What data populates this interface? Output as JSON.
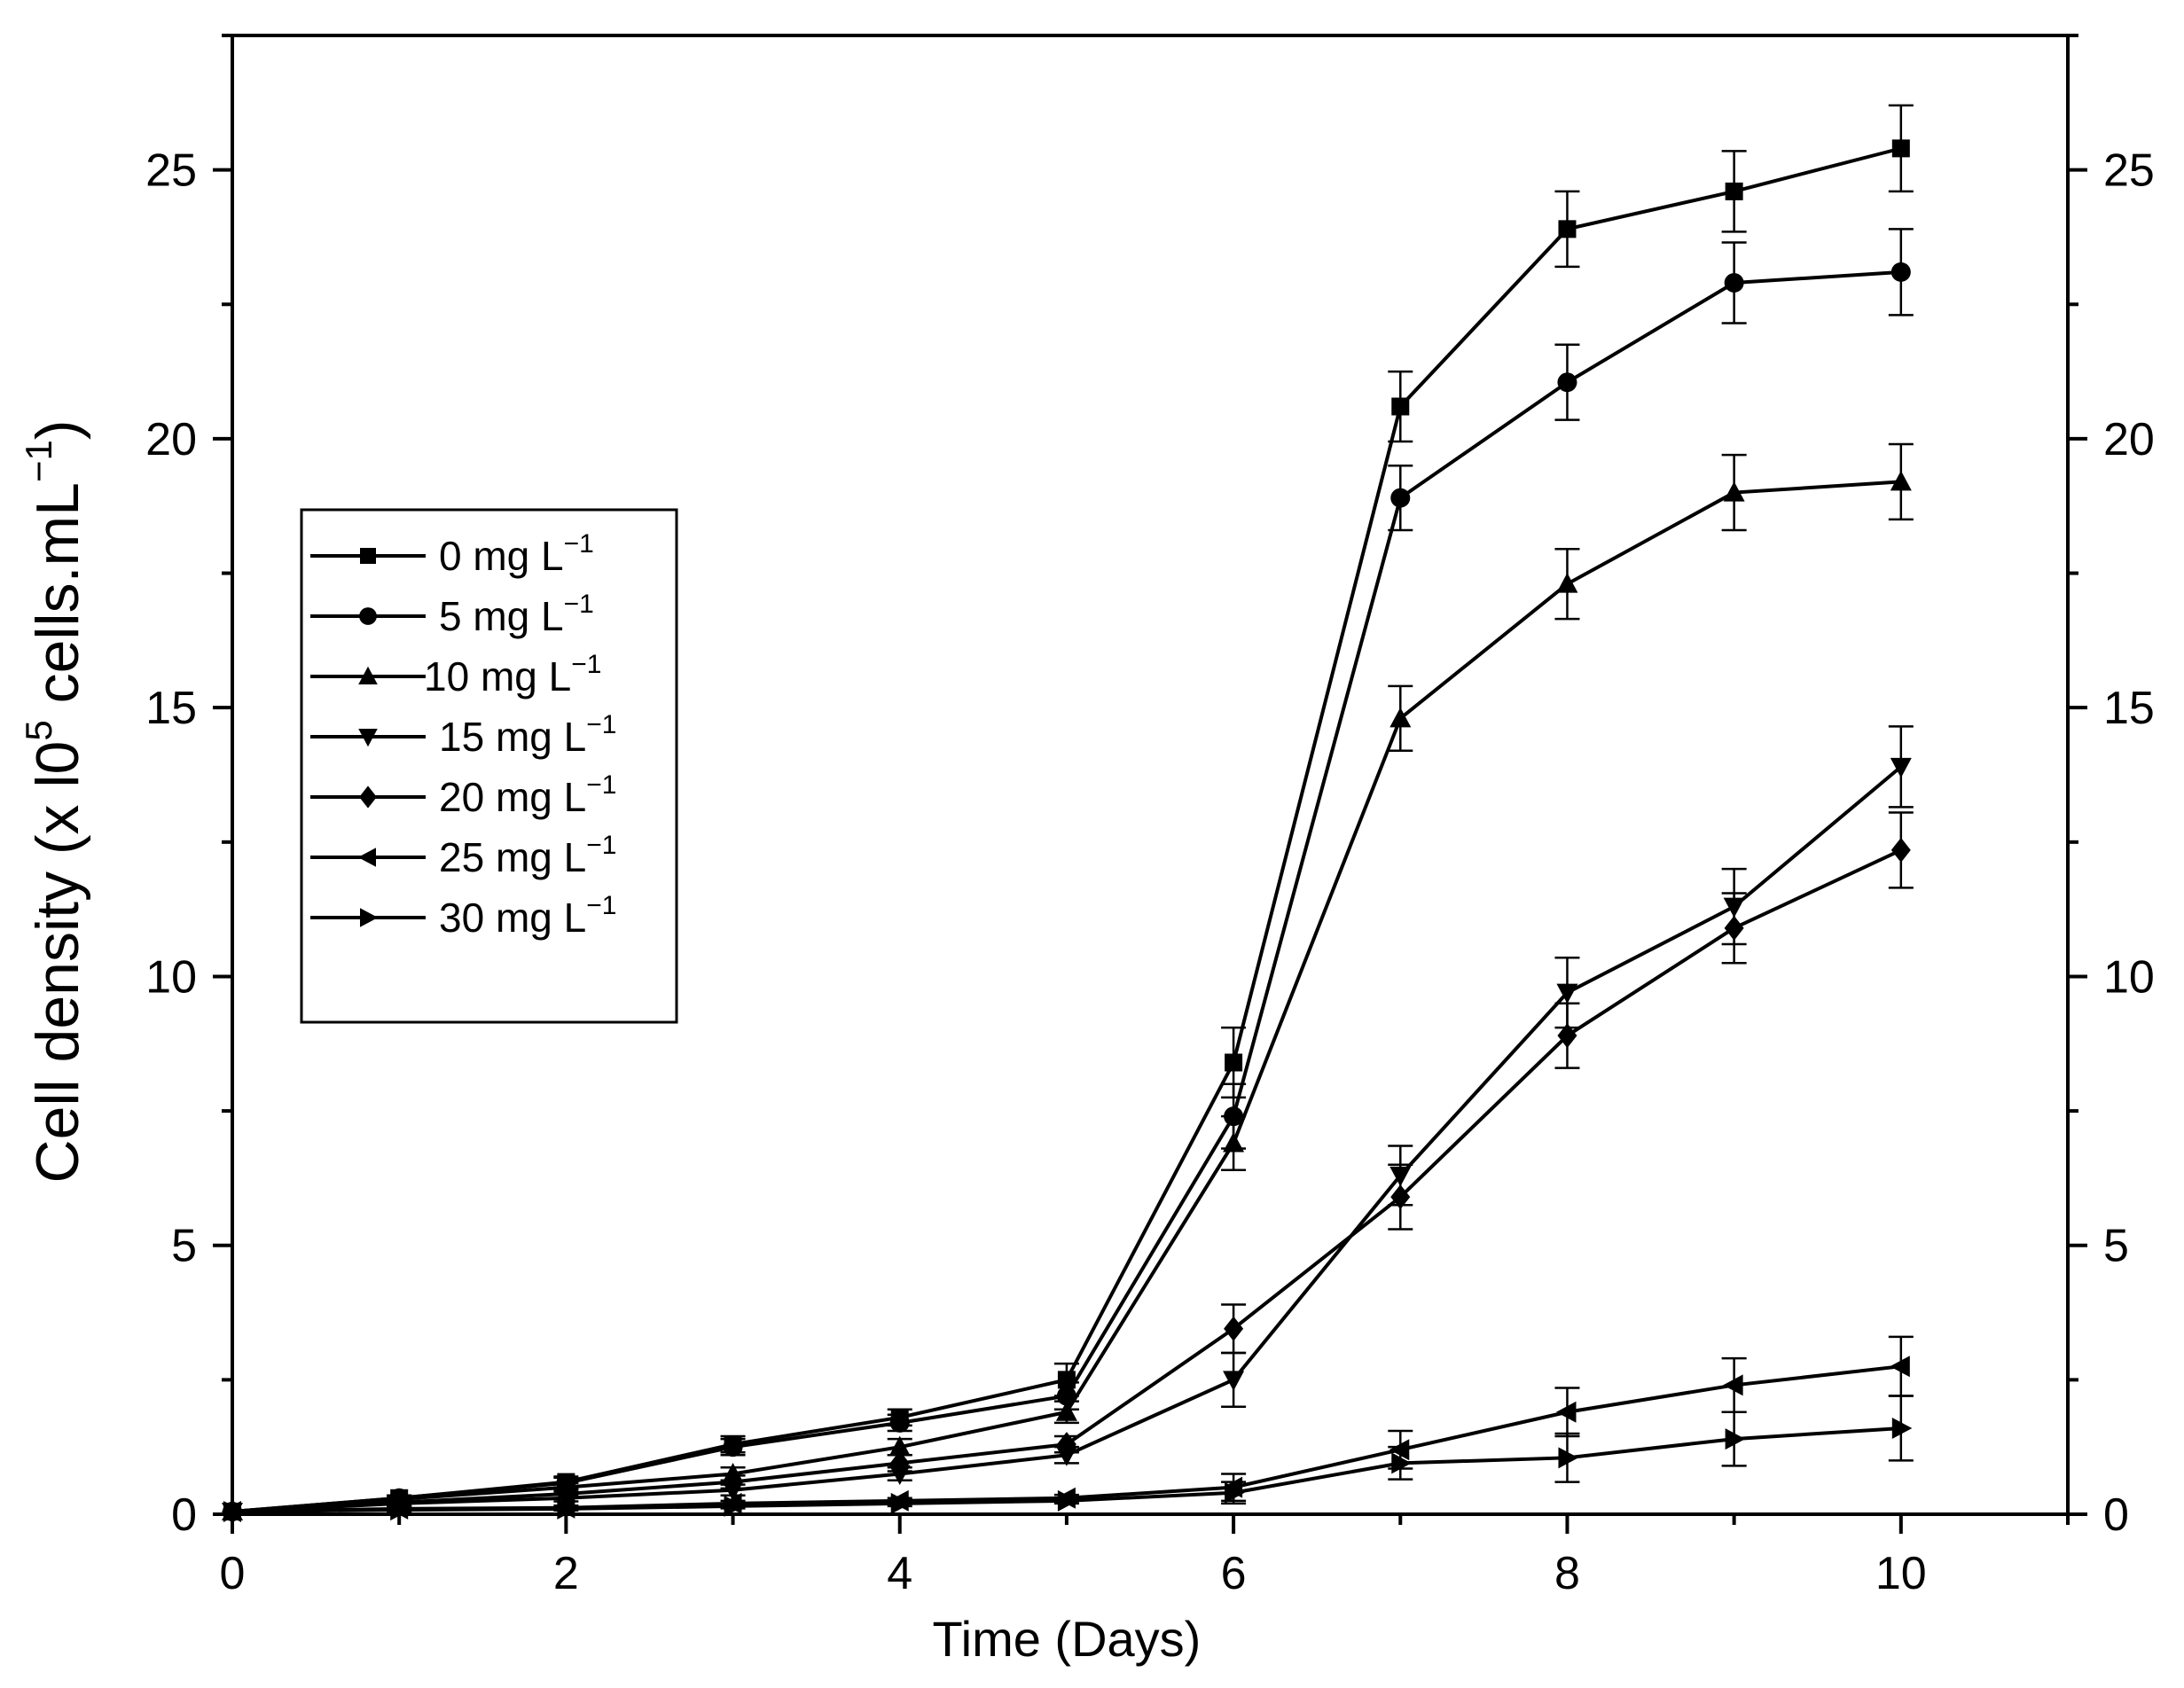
{
  "chart_data": {
    "type": "line",
    "title": "",
    "xlabel": "Time (Days)",
    "ylabel": {
      "main": "Cell density (x l0",
      "exp": "5",
      "unit": " cells.mL",
      "unit_exp": "−1",
      "close": ")"
    },
    "xlim": [
      0,
      11
    ],
    "ylim": [
      0,
      27.5
    ],
    "xticks": [
      0,
      2,
      4,
      6,
      8,
      10
    ],
    "xtick_labels": [
      "0",
      "2",
      "4",
      "6",
      "8",
      "10"
    ],
    "yticks": [
      0,
      5,
      10,
      15,
      20,
      25
    ],
    "ytick_labels": [
      "0",
      "5",
      "10",
      "15",
      "20",
      "25"
    ],
    "right_axis": true,
    "grid": false,
    "legend_position": "left-middle",
    "x": [
      0,
      1,
      2,
      3,
      4,
      5,
      6,
      7,
      8,
      9,
      10
    ],
    "series": [
      {
        "name": "0 mg L",
        "exp": "−1",
        "marker": "square",
        "values": [
          0.05,
          0.3,
          0.6,
          1.3,
          1.8,
          2.5,
          8.4,
          20.6,
          23.9,
          24.6,
          25.4
        ],
        "errors": [
          0,
          0.05,
          0.1,
          0.15,
          0.15,
          0.3,
          0.65,
          0.65,
          0.7,
          0.75,
          0.8
        ]
      },
      {
        "name": "5 mg L",
        "exp": "−1",
        "marker": "circle",
        "values": [
          0.05,
          0.3,
          0.58,
          1.25,
          1.7,
          2.2,
          7.4,
          18.9,
          21.05,
          22.9,
          23.1
        ],
        "errors": [
          0,
          0.05,
          0.1,
          0.15,
          0.15,
          0.25,
          0.6,
          0.6,
          0.7,
          0.75,
          0.8
        ]
      },
      {
        "name": "10 mg L",
        "exp": "−1",
        "marker": "triangle-up",
        "values": [
          0.05,
          0.28,
          0.5,
          0.75,
          1.25,
          1.9,
          6.9,
          14.8,
          17.3,
          19.0,
          19.2
        ],
        "errors": [
          0,
          0.05,
          0.08,
          0.12,
          0.15,
          0.2,
          0.5,
          0.6,
          0.65,
          0.7,
          0.7
        ]
      },
      {
        "name": "15 mg L",
        "exp": "−1",
        "marker": "triangle-down",
        "values": [
          0.05,
          0.2,
          0.3,
          0.45,
          0.75,
          1.1,
          2.5,
          6.3,
          9.7,
          11.3,
          13.9
        ],
        "errors": [
          0,
          0.05,
          0.06,
          0.1,
          0.12,
          0.15,
          0.5,
          0.55,
          0.65,
          0.7,
          0.75
        ]
      },
      {
        "name": "20 mg L",
        "exp": "−1",
        "marker": "diamond",
        "values": [
          0.05,
          0.22,
          0.38,
          0.6,
          0.95,
          1.3,
          3.45,
          5.9,
          8.9,
          10.9,
          12.35
        ],
        "errors": [
          0,
          0.05,
          0.08,
          0.12,
          0.15,
          0.15,
          0.45,
          0.6,
          0.6,
          0.65,
          0.7
        ]
      },
      {
        "name": "25 mg L",
        "exp": "−1",
        "marker": "triangle-left",
        "values": [
          0.05,
          0.1,
          0.12,
          0.2,
          0.25,
          0.3,
          0.5,
          1.2,
          1.9,
          2.4,
          2.75
        ],
        "errors": [
          0,
          0.03,
          0.04,
          0.05,
          0.05,
          0.06,
          0.25,
          0.35,
          0.45,
          0.5,
          0.55
        ]
      },
      {
        "name": "30 mg L",
        "exp": "−1",
        "marker": "triangle-right",
        "values": [
          0.05,
          0.08,
          0.1,
          0.15,
          0.2,
          0.25,
          0.4,
          0.95,
          1.05,
          1.4,
          1.6
        ],
        "errors": [
          0,
          0.03,
          0.03,
          0.04,
          0.05,
          0.05,
          0.2,
          0.3,
          0.45,
          0.5,
          0.6
        ]
      }
    ]
  }
}
